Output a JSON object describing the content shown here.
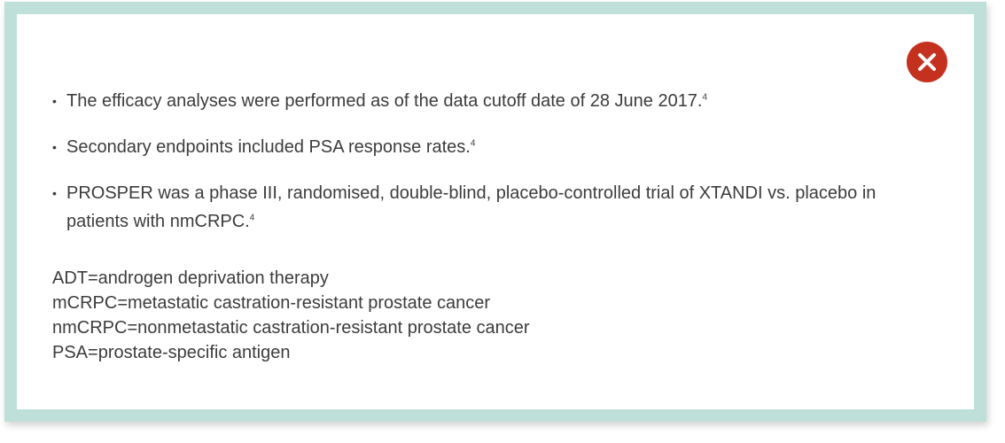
{
  "dialog": {
    "close_icon": "close-x-icon",
    "close_color": "#c4321f",
    "border_color": "#bfe0d8"
  },
  "bullets": [
    {
      "text": "The efficacy analyses were performed as of the data cutoff date of 28 June 2017.",
      "ref": "4"
    },
    {
      "text": "Secondary endpoints included PSA response rates.",
      "ref": "4"
    },
    {
      "text": "PROSPER was a phase III, randomised, double-blind, placebo-controlled trial of XTANDI vs. placebo in patients with nmCRPC.",
      "ref": "4"
    }
  ],
  "bullet_marker": "•",
  "abbreviations": [
    "ADT=androgen deprivation therapy",
    "mCRPC=metastatic castration-resistant prostate cancer",
    "nmCRPC=nonmetastatic castration-resistant prostate cancer",
    "PSA=prostate-specific antigen"
  ]
}
